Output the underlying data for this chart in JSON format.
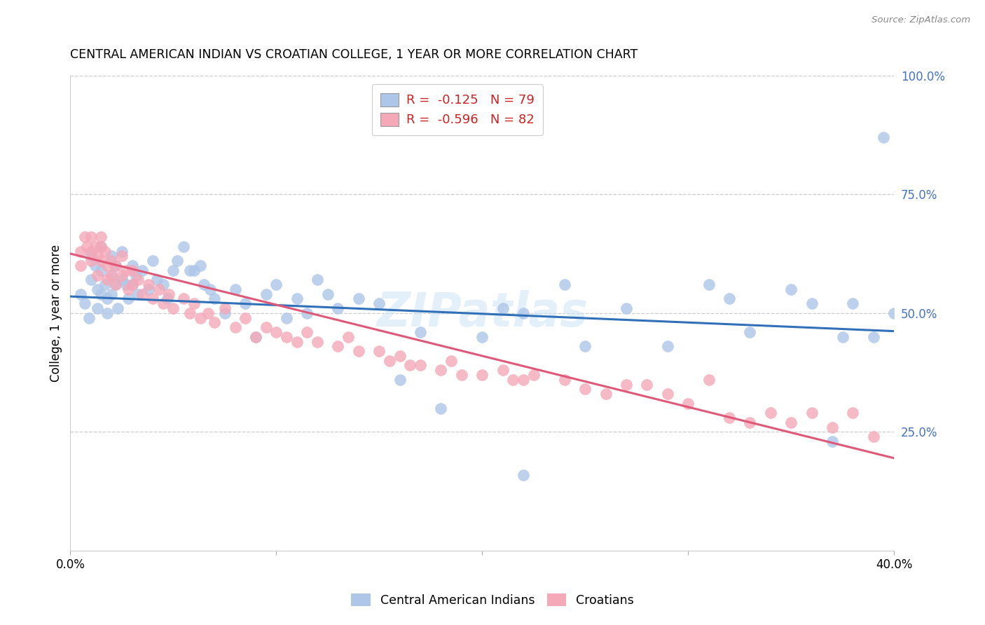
{
  "title": "CENTRAL AMERICAN INDIAN VS CROATIAN COLLEGE, 1 YEAR OR MORE CORRELATION CHART",
  "source": "Source: ZipAtlas.com",
  "ylabel": "College, 1 year or more",
  "legend_blue_r": "-0.125",
  "legend_blue_n": "79",
  "legend_pink_r": "-0.596",
  "legend_pink_n": "82",
  "blue_color": "#aec6e8",
  "pink_color": "#f4a8b8",
  "blue_line_color": "#3070b8",
  "pink_line_color": "#e05878",
  "blue_line_x0": 0.0,
  "blue_line_y0": 0.535,
  "blue_line_x1": 0.4,
  "blue_line_y1": 0.462,
  "pink_line_x0": 0.0,
  "pink_line_y0": 0.625,
  "pink_line_x1": 0.4,
  "pink_line_y1": 0.195,
  "xlim": [
    0.0,
    0.4
  ],
  "ylim": [
    0.0,
    1.0
  ],
  "blue_points_x": [
    0.005,
    0.007,
    0.009,
    0.01,
    0.01,
    0.012,
    0.013,
    0.013,
    0.015,
    0.015,
    0.015,
    0.017,
    0.018,
    0.018,
    0.02,
    0.02,
    0.02,
    0.022,
    0.022,
    0.023,
    0.025,
    0.025,
    0.027,
    0.028,
    0.03,
    0.03,
    0.032,
    0.033,
    0.035,
    0.038,
    0.04,
    0.042,
    0.045,
    0.047,
    0.05,
    0.052,
    0.055,
    0.058,
    0.06,
    0.063,
    0.065,
    0.068,
    0.07,
    0.075,
    0.08,
    0.085,
    0.09,
    0.095,
    0.1,
    0.105,
    0.11,
    0.115,
    0.12,
    0.125,
    0.13,
    0.14,
    0.15,
    0.16,
    0.17,
    0.18,
    0.2,
    0.21,
    0.22,
    0.24,
    0.25,
    0.27,
    0.29,
    0.31,
    0.32,
    0.33,
    0.35,
    0.36,
    0.37,
    0.375,
    0.38,
    0.39,
    0.395,
    0.4,
    0.22
  ],
  "blue_points_y": [
    0.54,
    0.52,
    0.49,
    0.62,
    0.57,
    0.6,
    0.55,
    0.51,
    0.64,
    0.59,
    0.54,
    0.56,
    0.53,
    0.5,
    0.62,
    0.58,
    0.54,
    0.6,
    0.56,
    0.51,
    0.63,
    0.57,
    0.56,
    0.53,
    0.6,
    0.56,
    0.58,
    0.54,
    0.59,
    0.55,
    0.61,
    0.57,
    0.56,
    0.53,
    0.59,
    0.61,
    0.64,
    0.59,
    0.59,
    0.6,
    0.56,
    0.55,
    0.53,
    0.5,
    0.55,
    0.52,
    0.45,
    0.54,
    0.56,
    0.49,
    0.53,
    0.5,
    0.57,
    0.54,
    0.51,
    0.53,
    0.52,
    0.36,
    0.46,
    0.3,
    0.45,
    0.51,
    0.5,
    0.56,
    0.43,
    0.51,
    0.43,
    0.56,
    0.53,
    0.46,
    0.55,
    0.52,
    0.23,
    0.45,
    0.52,
    0.45,
    0.87,
    0.5,
    0.16
  ],
  "pink_points_x": [
    0.005,
    0.005,
    0.007,
    0.008,
    0.01,
    0.01,
    0.01,
    0.012,
    0.013,
    0.013,
    0.015,
    0.015,
    0.015,
    0.017,
    0.018,
    0.018,
    0.02,
    0.02,
    0.022,
    0.022,
    0.025,
    0.025,
    0.027,
    0.028,
    0.03,
    0.03,
    0.033,
    0.035,
    0.038,
    0.04,
    0.043,
    0.045,
    0.048,
    0.05,
    0.055,
    0.058,
    0.06,
    0.063,
    0.067,
    0.07,
    0.075,
    0.08,
    0.085,
    0.09,
    0.095,
    0.1,
    0.105,
    0.11,
    0.115,
    0.12,
    0.13,
    0.135,
    0.14,
    0.15,
    0.155,
    0.16,
    0.165,
    0.17,
    0.18,
    0.185,
    0.19,
    0.2,
    0.21,
    0.215,
    0.22,
    0.225,
    0.24,
    0.25,
    0.26,
    0.27,
    0.28,
    0.29,
    0.3,
    0.31,
    0.32,
    0.33,
    0.34,
    0.35,
    0.36,
    0.37,
    0.38,
    0.39
  ],
  "pink_points_y": [
    0.63,
    0.6,
    0.66,
    0.64,
    0.66,
    0.63,
    0.61,
    0.64,
    0.62,
    0.58,
    0.66,
    0.64,
    0.61,
    0.63,
    0.6,
    0.57,
    0.61,
    0.58,
    0.6,
    0.56,
    0.62,
    0.58,
    0.59,
    0.55,
    0.59,
    0.56,
    0.57,
    0.54,
    0.56,
    0.53,
    0.55,
    0.52,
    0.54,
    0.51,
    0.53,
    0.5,
    0.52,
    0.49,
    0.5,
    0.48,
    0.51,
    0.47,
    0.49,
    0.45,
    0.47,
    0.46,
    0.45,
    0.44,
    0.46,
    0.44,
    0.43,
    0.45,
    0.42,
    0.42,
    0.4,
    0.41,
    0.39,
    0.39,
    0.38,
    0.4,
    0.37,
    0.37,
    0.38,
    0.36,
    0.36,
    0.37,
    0.36,
    0.34,
    0.33,
    0.35,
    0.35,
    0.33,
    0.31,
    0.36,
    0.28,
    0.27,
    0.29,
    0.27,
    0.29,
    0.26,
    0.29,
    0.24
  ]
}
